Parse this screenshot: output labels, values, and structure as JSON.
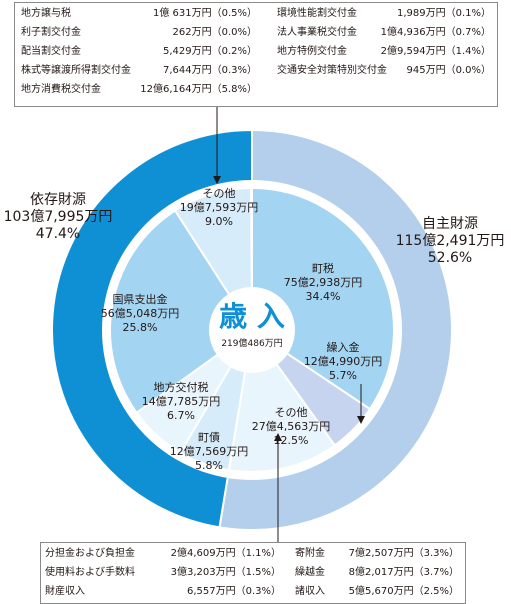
{
  "top_box": {
    "left": [
      {
        "name": "地方譲与税",
        "value": "1億 631万円（0.5%）"
      },
      {
        "name": "利子割交付金",
        "value": "262万円（0.0%）"
      },
      {
        "name": "配当割交付金",
        "value": "5,429万円（0.2%）"
      },
      {
        "name": "株式等譲渡所得割交付金",
        "value": "7,644万円（0.3%）"
      },
      {
        "name": "地方消費税交付金",
        "value": "12億6,164万円（5.8%）"
      }
    ],
    "right": [
      {
        "name": "環境性能割交付金",
        "value": "1,989万円（0.1%）"
      },
      {
        "name": "法人事業税交付金",
        "value": "1億4,936万円（0.7%）"
      },
      {
        "name": "地方特例交付金",
        "value": "2億9,594万円（1.4%）"
      },
      {
        "name": "交通安全対策特別交付金",
        "value": "945万円（0.0%）"
      }
    ]
  },
  "bottom_box": {
    "left": [
      {
        "name": "分担金および負担金",
        "value": "2億4,609万円（1.1%）"
      },
      {
        "name": "使用料および手数料",
        "value": "3億3,203万円（1.5%）"
      },
      {
        "name": "財産収入",
        "value": "6,557万円（0.3%）"
      }
    ],
    "right": [
      {
        "name": "寄附金",
        "value": "7億2,507万円（3.3%）"
      },
      {
        "name": "繰越金",
        "value": "8億2,017万円（3.7%）"
      },
      {
        "name": "諸収入",
        "value": "5億5,670万円（2.5%）"
      }
    ]
  },
  "colors": {
    "dependent": "#0f8fd4",
    "independent": "#b3cfeb",
    "inner_fill": "#a3d4f1",
    "inner_light": "#d6ecfa",
    "inner_lightest": "#e9f5fd",
    "inner_lavender": "#c7d4ef",
    "title": "#0f8fd4",
    "stroke": "#ffffff"
  },
  "chart_data": {
    "type": "pie",
    "center_title": "歳 入",
    "center_total": "219億486万円",
    "outer": [
      {
        "name": "自主財源",
        "amount": "115億2,491万円",
        "percent": 52.6
      },
      {
        "name": "依存財源",
        "amount": "103億7,995万円",
        "percent": 47.4
      }
    ],
    "inner": [
      {
        "name": "町税",
        "amount": "75億2,938万円",
        "percent": 34.4
      },
      {
        "name": "繰入金",
        "amount": "12億4,990万円",
        "percent": 5.7
      },
      {
        "name": "その他",
        "amount": "27億4,563万円",
        "percent": 12.5
      },
      {
        "name": "町債",
        "amount": "12億7,569万円",
        "percent": 5.8
      },
      {
        "name": "地方交付税",
        "amount": "14億7,785万円",
        "percent": 6.7
      },
      {
        "name": "国県支出金",
        "amount": "56億5,048万円",
        "percent": 25.8
      },
      {
        "name": "その他",
        "amount": "19億7,593万円",
        "percent": 9.0
      }
    ]
  }
}
